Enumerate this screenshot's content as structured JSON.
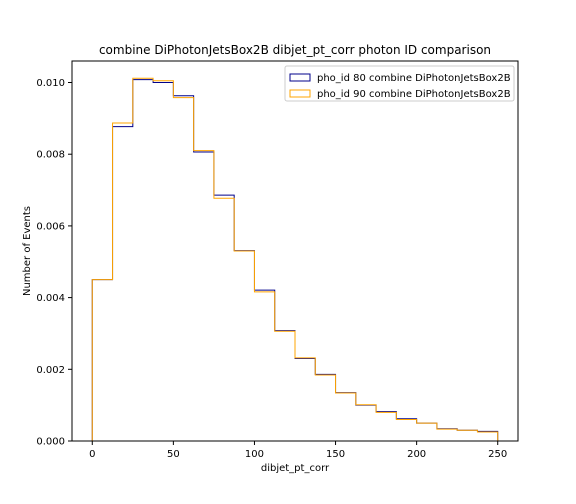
{
  "chart_data": {
    "type": "step-histogram",
    "title": "combine DiPhotonJetsBox2B dibjet_pt_corr photon ID comparison",
    "xlabel": "dibjet_pt_corr",
    "ylabel": "Number of Events",
    "xlim": [
      -12.5,
      262.5
    ],
    "ylim": [
      0,
      0.0106
    ],
    "xticks": [
      0,
      50,
      100,
      150,
      200,
      250
    ],
    "yticks": [
      0.0,
      0.002,
      0.004,
      0.006,
      0.008,
      0.01
    ],
    "ytick_labels": [
      "0.000",
      "0.002",
      "0.004",
      "0.006",
      "0.008",
      "0.010"
    ],
    "bin_edges": [
      0,
      12.5,
      25,
      37.5,
      50,
      62.5,
      75,
      87.5,
      100,
      112.5,
      125,
      137.5,
      150,
      162.5,
      175,
      187.5,
      200,
      212.5,
      225,
      237.5,
      250
    ],
    "legend_position": "upper-right",
    "series": [
      {
        "name": "pho_id 80 combine DiPhotonJetsBox2B",
        "color": "#00008b",
        "values": [
          0.0045,
          0.00877,
          0.01008,
          0.01,
          0.00963,
          0.00806,
          0.00686,
          0.00531,
          0.00421,
          0.00308,
          0.0023,
          0.00186,
          0.00135,
          0.001,
          0.00082,
          0.00062,
          0.0005,
          0.00034,
          0.0003,
          0.00027
        ]
      },
      {
        "name": "pho_id 90 combine DiPhotonJetsBox2B",
        "color": "#ffa500",
        "values": [
          0.0045,
          0.00887,
          0.01012,
          0.01005,
          0.00958,
          0.0081,
          0.00677,
          0.0053,
          0.00416,
          0.00306,
          0.00232,
          0.00184,
          0.00134,
          0.00101,
          0.0008,
          0.0006,
          0.0005,
          0.00033,
          0.0003,
          0.00025
        ]
      }
    ]
  }
}
